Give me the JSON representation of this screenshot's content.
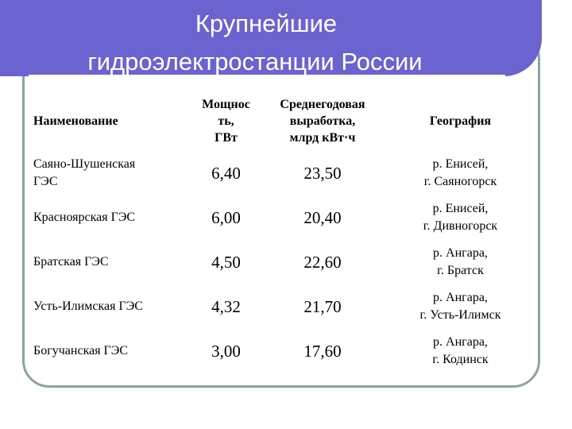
{
  "title": {
    "line1": "Крупнейшие",
    "line2": "гидроэлектростанции России"
  },
  "table": {
    "headers": {
      "name": "Наименование",
      "power": [
        "Мощнос",
        "ть,",
        "ГВт"
      ],
      "generation": [
        "Среднегодовая",
        "выработка,",
        "млрд кВт·ч"
      ],
      "geography": "География"
    },
    "rows": [
      {
        "name": [
          "Саяно-Шушенская",
          "ГЭС"
        ],
        "power": "6,40",
        "generation": "23,50",
        "geography": [
          "р. Енисей,",
          "г. Саяногорск"
        ]
      },
      {
        "name": [
          "Красноярская ГЭС"
        ],
        "power": "6,00",
        "generation": "20,40",
        "geography": [
          "р. Енисей,",
          "г. Дивногорск"
        ]
      },
      {
        "name": [
          "Братская ГЭС"
        ],
        "power": "4,50",
        "generation": "22,60",
        "geography": [
          "р. Ангара,",
          "г. Братск"
        ]
      },
      {
        "name": [
          "Усть-Илимская ГЭС"
        ],
        "power": "4,32",
        "generation": "21,70",
        "geography": [
          "р. Ангара,",
          "г. Усть-Илимск"
        ]
      },
      {
        "name": [
          "Богучанская ГЭС"
        ],
        "power": "3,00",
        "generation": "17,60",
        "geography": [
          "р. Ангара,",
          "г. Кодинск"
        ]
      }
    ]
  },
  "colors": {
    "banner": "#6b63cf",
    "outline": "#8aa3a6",
    "title_text": "#ffffff"
  }
}
